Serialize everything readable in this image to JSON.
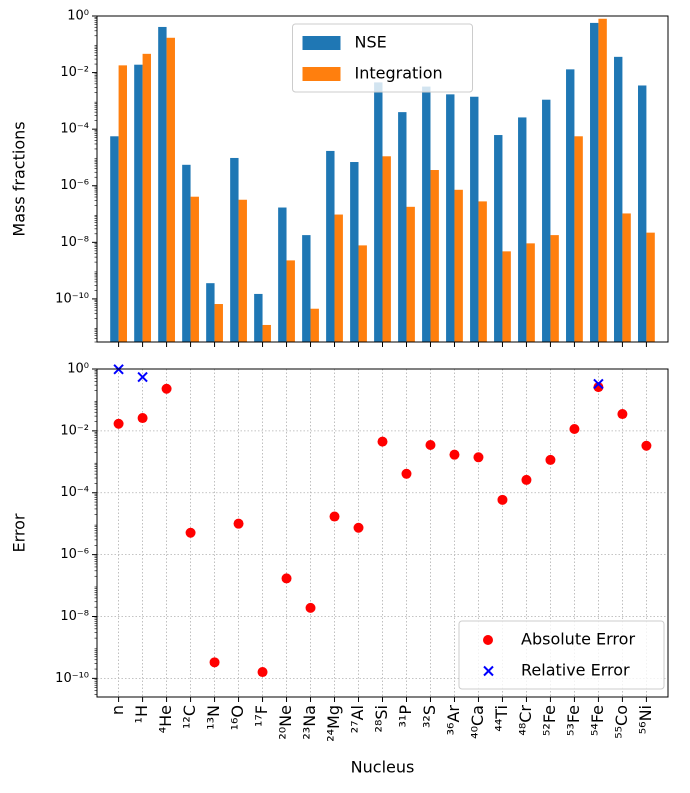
{
  "chart_data": [
    {
      "type": "bar",
      "y_label": "Mass fractions",
      "yscale": "log",
      "ylim": [
        3e-12,
        1
      ],
      "yticks": [
        {
          "value": 1,
          "label": "10⁰"
        },
        {
          "value": 0.01,
          "label": "10⁻²"
        },
        {
          "value": 0.0001,
          "label": "10⁻⁴"
        },
        {
          "value": 1e-06,
          "label": "10⁻⁶"
        },
        {
          "value": 1e-08,
          "label": "10⁻⁸"
        },
        {
          "value": 1e-10,
          "label": "10⁻¹⁰"
        }
      ],
      "grid": false,
      "legend": "upper center",
      "series": [
        {
          "name": "NSE",
          "color": "#1f77b4",
          "values": [
            5.6e-05,
            0.019,
            0.41,
            5.5e-06,
            3.6e-10,
            9.6e-06,
            1.5e-10,
            1.7e-07,
            1.8e-08,
            1.7e-05,
            6.9e-06,
            0.0045,
            0.0004,
            0.0032,
            0.0017,
            0.0014,
            6.2e-05,
            0.00026,
            0.0011,
            0.013,
            0.57,
            0.036,
            0.0035
          ]
        },
        {
          "name": "Integration",
          "color": "#ff7f0e",
          "values": [
            0.018,
            0.046,
            0.17,
            4.1e-07,
            6.6e-11,
            3.2e-07,
            1.2e-11,
            2.3e-09,
            4.5e-11,
            9.6e-08,
            7.8e-09,
            1.1e-05,
            1.8e-07,
            3.6e-06,
            7.2e-07,
            2.8e-07,
            4.8e-09,
            9.2e-09,
            1.8e-08,
            5.6e-05,
            0.8,
            1.05e-07,
            2.2e-08
          ]
        }
      ]
    },
    {
      "type": "scatter",
      "x_label": "Nucleus",
      "y_label": "Error",
      "yscale": "log",
      "ylim": [
        2.5e-11,
        1
      ],
      "yticks": [
        {
          "value": 1,
          "label": "10⁰"
        },
        {
          "value": 0.01,
          "label": "10⁻²"
        },
        {
          "value": 0.0001,
          "label": "10⁻⁴"
        },
        {
          "value": 1e-06,
          "label": "10⁻⁶"
        },
        {
          "value": 1e-08,
          "label": "10⁻⁸"
        },
        {
          "value": 1e-10,
          "label": "10⁻¹⁰"
        }
      ],
      "grid": true,
      "legend": "lower right",
      "categories": [
        "n",
        "¹H",
        "⁴He",
        "¹²C",
        "¹³N",
        "¹⁶O",
        "¹⁷F",
        "²⁰Ne",
        "²³Na",
        "²⁴Mg",
        "²⁷Al",
        "²⁸Si",
        "³¹P",
        "³²S",
        "³⁶Ar",
        "⁴⁰Ca",
        "⁴⁴Ti",
        "⁴⁸Cr",
        "⁵²Fe",
        "⁵³Fe",
        "⁵⁴Fe",
        "⁵⁵Co",
        "⁵⁶Ni"
      ],
      "series": [
        {
          "name": "Absolute Error",
          "color": "red",
          "marker": "o",
          "values": [
            0.017,
            0.026,
            0.23,
            5.1e-06,
            3.3e-10,
            1e-05,
            1.6e-10,
            1.7e-07,
            1.9e-08,
            1.7e-05,
            7.4e-06,
            0.0045,
            0.00041,
            0.0035,
            0.0017,
            0.0014,
            5.9e-05,
            0.00026,
            0.00115,
            0.0115,
            0.26,
            0.035,
            0.0033
          ]
        },
        {
          "name": "Relative Error",
          "color": "blue",
          "marker": "x",
          "values": [
            0.98,
            0.55,
            null,
            null,
            null,
            null,
            null,
            null,
            null,
            null,
            null,
            null,
            null,
            null,
            null,
            null,
            null,
            null,
            null,
            null,
            0.33,
            null,
            null
          ]
        }
      ]
    }
  ]
}
